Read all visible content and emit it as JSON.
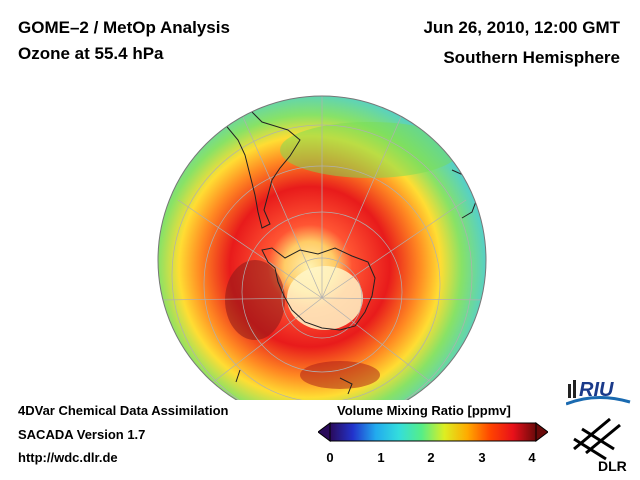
{
  "header": {
    "title_line1": "GOME–2 / MetOp Analysis",
    "title_line2": "Ozone at 55.4 hPa",
    "date": "Jun 26, 2010, 12:00 GMT",
    "hemisphere": "Southern Hemisphere"
  },
  "footer": {
    "line1": "4DVar Chemical Data Assimilation",
    "line2": "SACADA Version 1.7",
    "line3": "http://wdc.dlr.de"
  },
  "colorbar": {
    "title": "Volume Mixing Ratio [ppmv]",
    "ticks": [
      "0",
      "1",
      "2",
      "3",
      "4"
    ],
    "range": [
      0,
      4
    ],
    "colors": [
      "#2a0a5a",
      "#2233cc",
      "#22aaee",
      "#33dddd",
      "#55ee88",
      "#ddee22",
      "#ffaa00",
      "#ff4400",
      "#e8101a",
      "#6a0a0a"
    ]
  },
  "logos": {
    "riu": "RIU",
    "dlr": "DLR"
  },
  "map": {
    "projection": "orthographic, south pole centered",
    "field": "ozone volume mixing ratio",
    "colors": {
      "ocean_low": "#2ab4d8",
      "mid_green": "#66dd66",
      "yellow": "#ddee33",
      "orange": "#ff9922",
      "red": "#ee2222",
      "dark_red": "#8b1a1a",
      "pole_cream": "#fff2b0"
    }
  }
}
